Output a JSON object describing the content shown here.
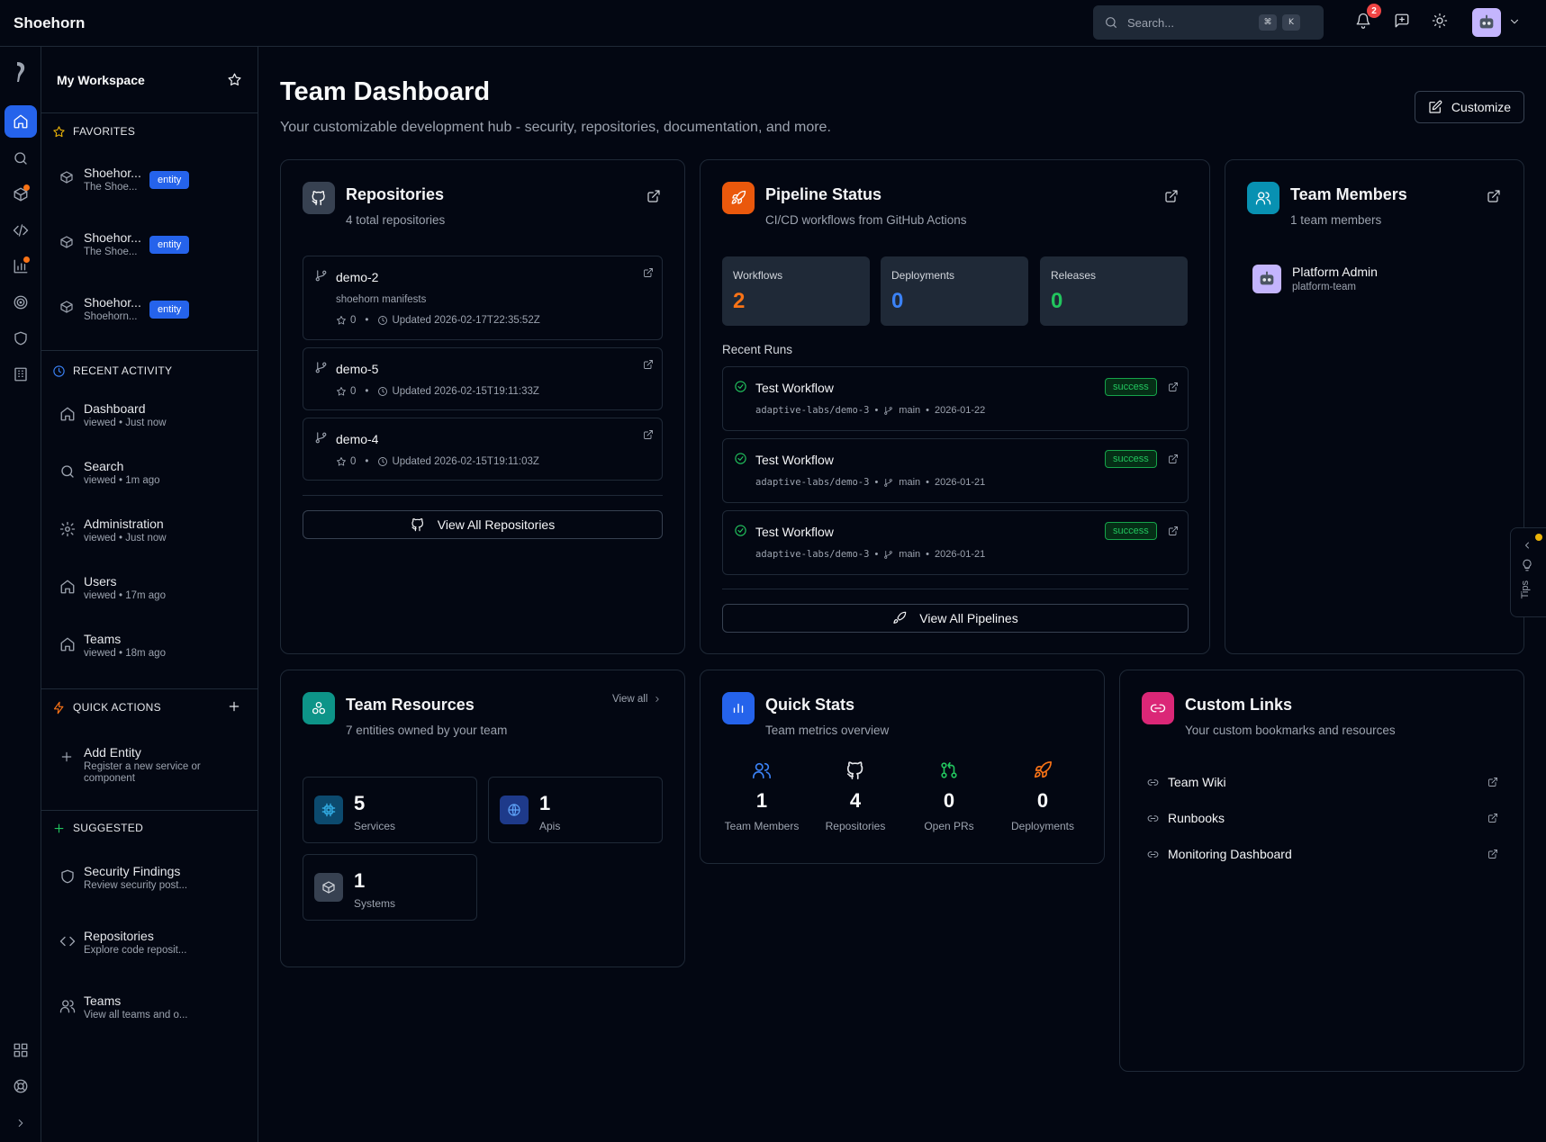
{
  "app": {
    "name": "Shoehorn"
  },
  "topbar": {
    "search_placeholder": "Search...",
    "kbd_cmd": "⌘",
    "kbd_k": "K",
    "notification_count": "2"
  },
  "sidebar": {
    "workspace": "My Workspace",
    "favorites": {
      "heading": "FAVORITES",
      "items": [
        {
          "title": "Shoehor...",
          "subtitle": "The Shoe...",
          "tag": "entity"
        },
        {
          "title": "Shoehor...",
          "subtitle": "The Shoe...",
          "tag": "entity"
        },
        {
          "title": "Shoehor...",
          "subtitle": "Shoehorn...",
          "tag": "entity"
        }
      ]
    },
    "recent": {
      "heading": "RECENT ACTIVITY",
      "items": [
        {
          "title": "Dashboard",
          "subtitle": "viewed • Just now"
        },
        {
          "title": "Search",
          "subtitle": "viewed • 1m ago"
        },
        {
          "title": "Administration",
          "subtitle": "viewed • Just now"
        },
        {
          "title": "Users",
          "subtitle": "viewed • 17m ago"
        },
        {
          "title": "Teams",
          "subtitle": "viewed • 18m ago"
        }
      ]
    },
    "quick_actions": {
      "heading": "QUICK ACTIONS",
      "items": [
        {
          "title": "Add Entity",
          "subtitle_line1": "Register a new service or",
          "subtitle_line2": "component"
        }
      ]
    },
    "suggested": {
      "heading": "SUGGESTED",
      "items": [
        {
          "title": "Security Findings",
          "subtitle": "Review security post..."
        },
        {
          "title": "Repositories",
          "subtitle": "Explore code reposit..."
        },
        {
          "title": "Teams",
          "subtitle": "View all teams and o..."
        }
      ]
    }
  },
  "page": {
    "title": "Team Dashboard",
    "subtitle": "Your customizable development hub - security, repositories, documentation, and more.",
    "customize_label": "Customize"
  },
  "repositories": {
    "title": "Repositories",
    "subtitle": "4 total repositories",
    "items": [
      {
        "name": "demo-2",
        "description": "shoehorn manifests",
        "stars": "0",
        "updated": "Updated 2026-02-17T22:35:52Z"
      },
      {
        "name": "demo-5",
        "stars": "0",
        "updated": "Updated 2026-02-15T19:11:33Z"
      },
      {
        "name": "demo-4",
        "stars": "0",
        "updated": "Updated 2026-02-15T19:11:03Z"
      }
    ],
    "view_all": "View All Repositories"
  },
  "pipeline": {
    "title": "Pipeline Status",
    "subtitle": "CI/CD workflows from GitHub Actions",
    "stats": [
      {
        "label": "Workflows",
        "value": "2",
        "color": "#f97316"
      },
      {
        "label": "Deployments",
        "value": "0",
        "color": "#3b82f6"
      },
      {
        "label": "Releases",
        "value": "0",
        "color": "#22c55e"
      }
    ],
    "recent_heading": "Recent Runs",
    "runs": [
      {
        "name": "Test Workflow",
        "repo": "adaptive-labs/demo-3",
        "branch": "main",
        "date": "2026-01-22",
        "status": "success"
      },
      {
        "name": "Test Workflow",
        "repo": "adaptive-labs/demo-3",
        "branch": "main",
        "date": "2026-01-21",
        "status": "success"
      },
      {
        "name": "Test Workflow",
        "repo": "adaptive-labs/demo-3",
        "branch": "main",
        "date": "2026-01-21",
        "status": "success"
      }
    ],
    "view_all": "View All Pipelines"
  },
  "team_members": {
    "title": "Team Members",
    "subtitle": "1 team members",
    "members": [
      {
        "name": "Platform Admin",
        "team": "platform-team"
      }
    ]
  },
  "team_resources": {
    "title": "Team Resources",
    "subtitle": "7 entities owned by your team",
    "view_all": "View all",
    "items": [
      {
        "value": "5",
        "label": "Services"
      },
      {
        "value": "1",
        "label": "Apis"
      },
      {
        "value": "1",
        "label": "Systems"
      }
    ]
  },
  "quick_stats": {
    "title": "Quick Stats",
    "subtitle": "Team metrics overview",
    "items": [
      {
        "value": "1",
        "label": "Team Members",
        "icon": "users-icon",
        "color": "#3b82f6"
      },
      {
        "value": "4",
        "label": "Repositories",
        "icon": "github-icon",
        "color": "#e5e7eb"
      },
      {
        "value": "0",
        "label": "Open PRs",
        "icon": "git-pull-request-icon",
        "color": "#22c55e"
      },
      {
        "value": "0",
        "label": "Deployments",
        "icon": "rocket-icon",
        "color": "#f97316"
      }
    ]
  },
  "custom_links": {
    "title": "Custom Links",
    "subtitle": "Your custom bookmarks and resources",
    "items": [
      {
        "label": "Team Wiki"
      },
      {
        "label": "Runbooks"
      },
      {
        "label": "Monitoring Dashboard"
      }
    ]
  },
  "tips": {
    "label": "Tips"
  }
}
